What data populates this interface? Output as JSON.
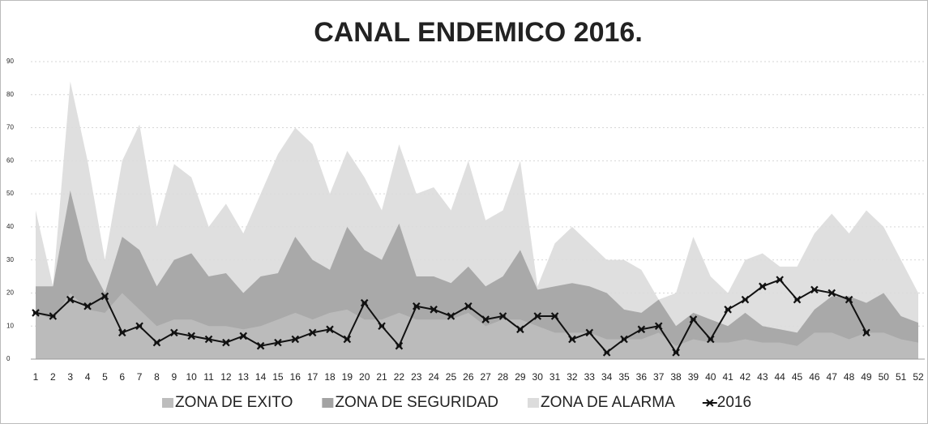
{
  "chart_data": {
    "type": "area_line",
    "title": "CANAL ENDEMICO 2016.",
    "categories": [
      "1",
      "2",
      "3",
      "4",
      "5",
      "6",
      "7",
      "8",
      "9",
      "10",
      "11",
      "12",
      "13",
      "14",
      "15",
      "16",
      "17",
      "18",
      "19",
      "20",
      "21",
      "22",
      "23",
      "24",
      "25",
      "26",
      "27",
      "28",
      "29",
      "30",
      "31",
      "32",
      "33",
      "34",
      "35",
      "36",
      "37",
      "38",
      "39",
      "40",
      "41",
      "42",
      "43",
      "44",
      "45",
      "46",
      "47",
      "48",
      "49",
      "50",
      "51",
      "52"
    ],
    "series": [
      {
        "name": "ZONA DE EXITO",
        "kind": "area",
        "color": "#bdbdbd",
        "values": [
          14,
          12,
          20,
          15,
          14,
          20,
          15,
          10,
          12,
          12,
          10,
          10,
          9,
          10,
          12,
          14,
          12,
          14,
          15,
          12,
          12,
          14,
          12,
          12,
          12,
          14,
          10,
          12,
          12,
          10,
          8,
          8,
          8,
          6,
          6,
          6,
          8,
          4,
          6,
          5,
          5,
          6,
          5,
          5,
          4,
          8,
          8,
          6,
          8,
          8,
          6,
          5
        ]
      },
      {
        "name": "ZONA DE SEGURIDAD",
        "kind": "area",
        "color": "#a3a3a3",
        "values": [
          22,
          22,
          51,
          30,
          20,
          37,
          33,
          22,
          30,
          32,
          25,
          26,
          20,
          25,
          26,
          37,
          30,
          27,
          40,
          33,
          30,
          41,
          25,
          25,
          23,
          28,
          22,
          25,
          33,
          21,
          22,
          23,
          22,
          20,
          15,
          14,
          18,
          10,
          14,
          12,
          10,
          14,
          10,
          9,
          8,
          15,
          19,
          19,
          17,
          20,
          13,
          11
        ]
      },
      {
        "name": "ZONA DE ALARMA",
        "kind": "area",
        "color": "#dcdcdc",
        "values": [
          45,
          22,
          84,
          60,
          30,
          60,
          71,
          40,
          59,
          55,
          40,
          47,
          38,
          50,
          62,
          70,
          65,
          50,
          63,
          55,
          45,
          65,
          50,
          52,
          45,
          60,
          42,
          45,
          60,
          22,
          35,
          40,
          35,
          30,
          30,
          27,
          18,
          20,
          37,
          25,
          20,
          30,
          32,
          28,
          28,
          38,
          44,
          38,
          45,
          40,
          30,
          20
        ]
      },
      {
        "name": "2016",
        "kind": "line",
        "color": "#111111",
        "values": [
          14,
          13,
          18,
          16,
          19,
          8,
          10,
          5,
          8,
          7,
          6,
          5,
          7,
          4,
          5,
          6,
          8,
          9,
          6,
          17,
          10,
          4,
          16,
          15,
          13,
          16,
          12,
          13,
          9,
          13,
          13,
          6,
          8,
          2,
          6,
          9,
          10,
          2,
          12,
          6,
          15,
          18,
          22,
          24,
          18,
          21,
          20,
          18,
          8,
          null,
          null,
          null
        ]
      }
    ],
    "ylim": [
      0,
      90
    ],
    "yticks": [
      0,
      10,
      20,
      30,
      40,
      50,
      60,
      70,
      80,
      90
    ],
    "grid": true,
    "legend": "bottom"
  }
}
